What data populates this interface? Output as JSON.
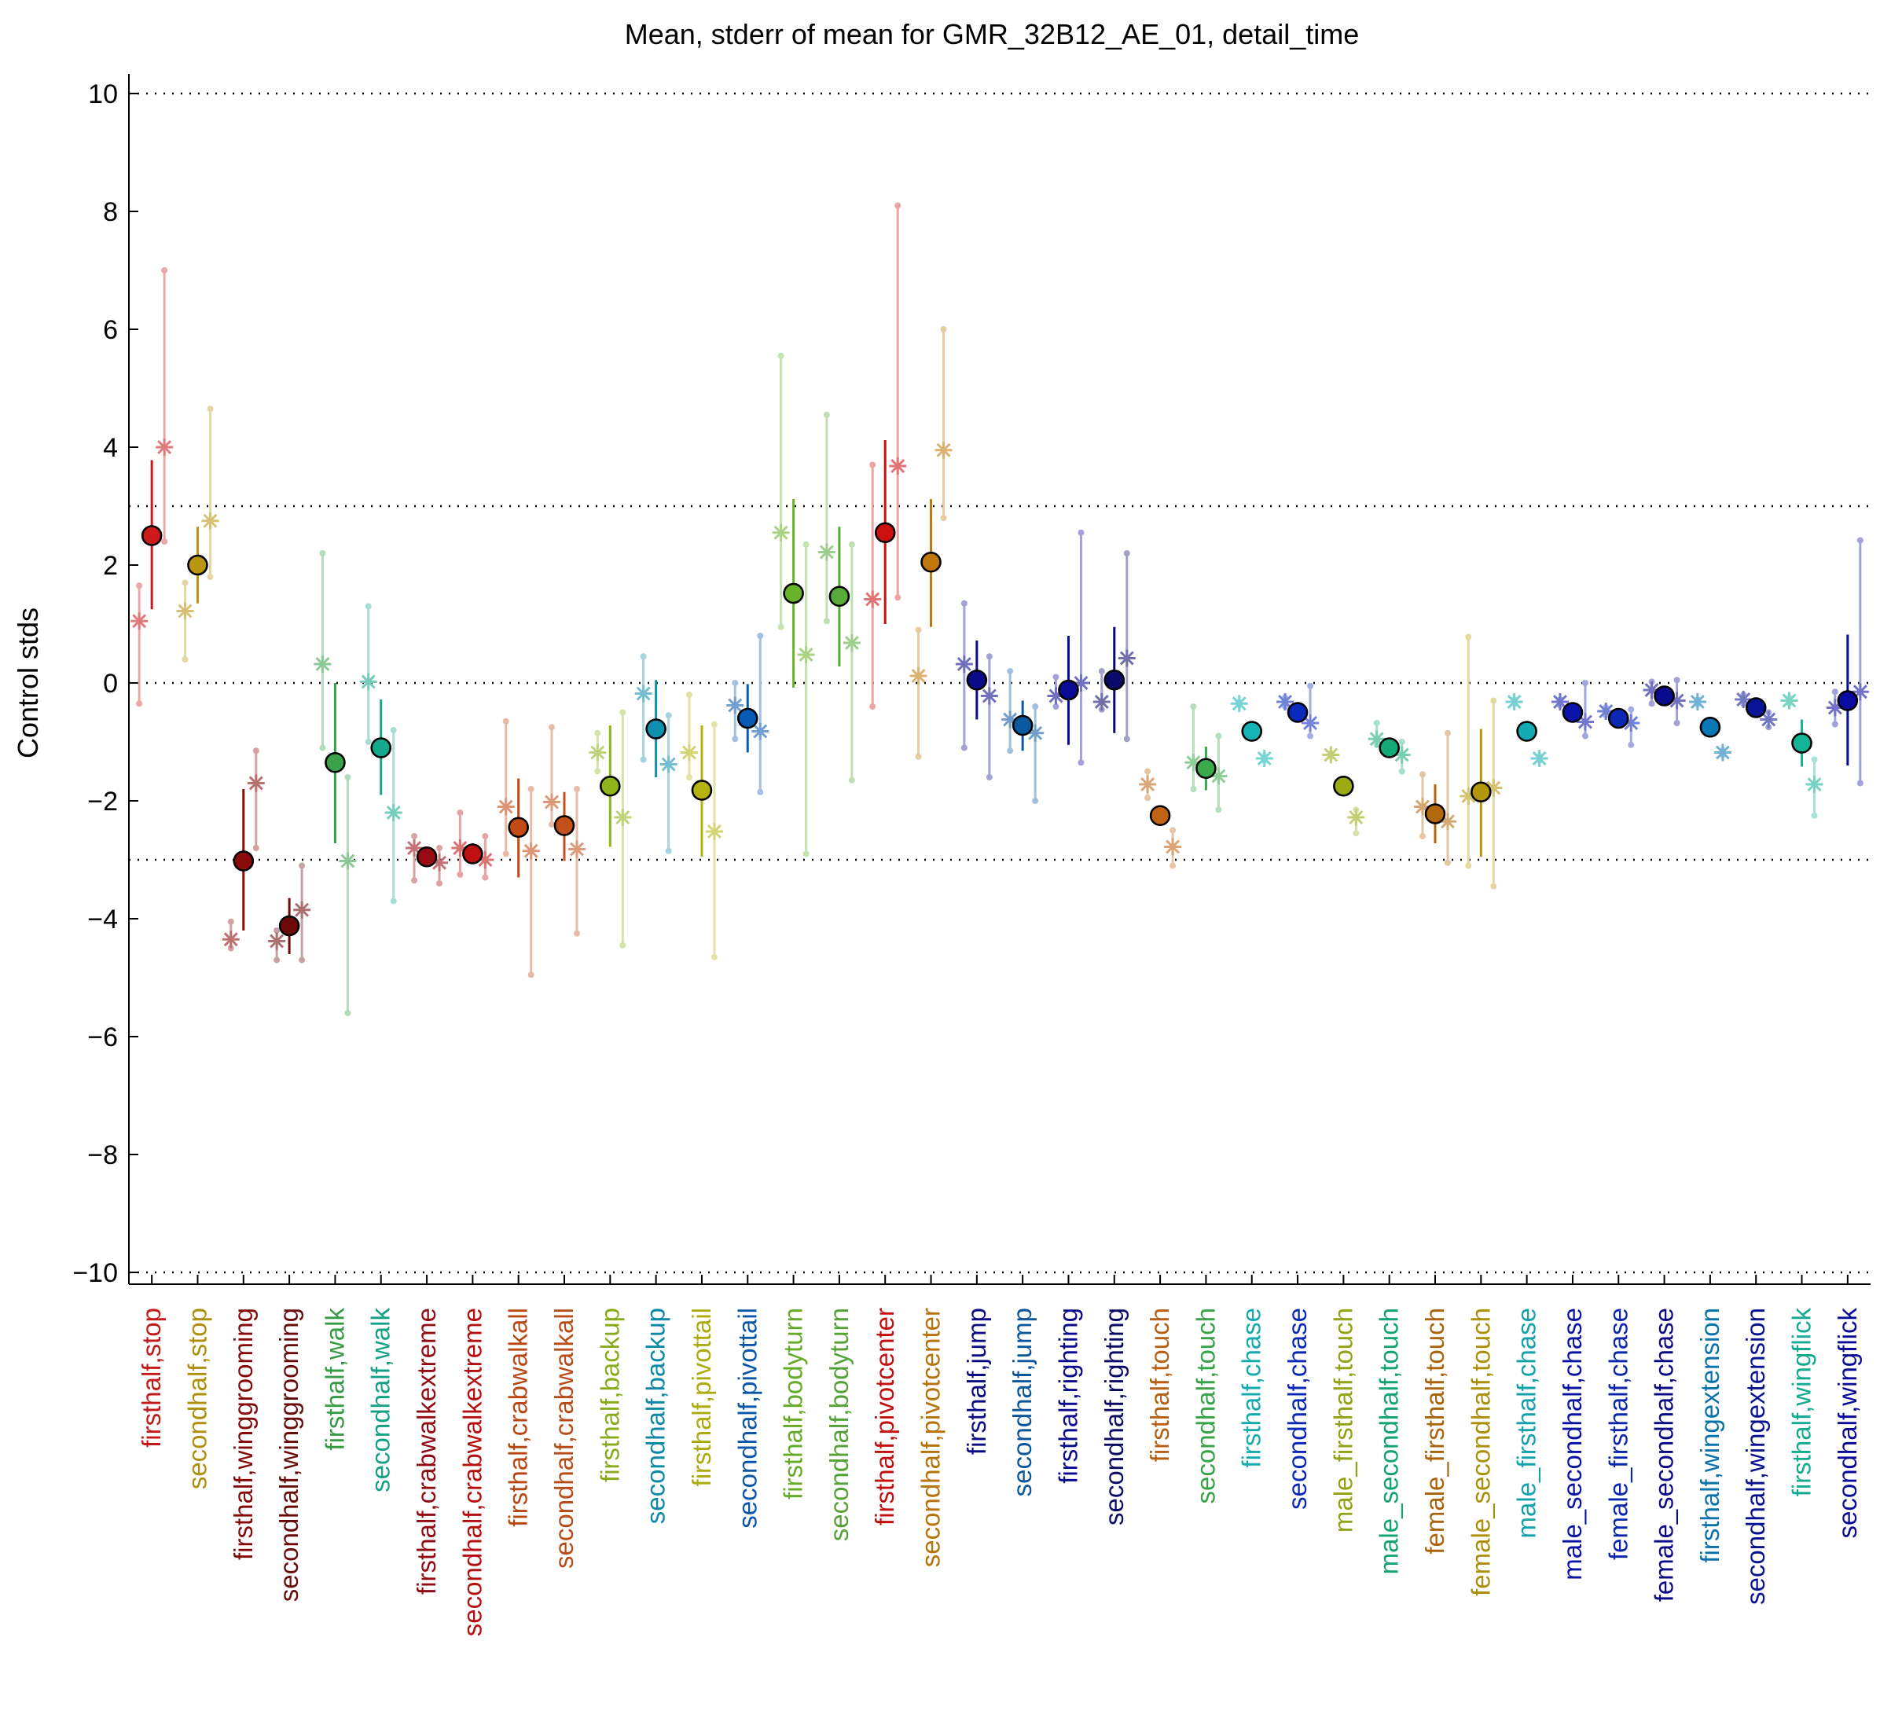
{
  "chart_data": {
    "type": "scatter",
    "title": "Mean, stderr of mean for GMR_32B12_AE_01, detail_time",
    "ylabel": "Control stds",
    "xlabel": "",
    "ylim": [
      -10.2,
      10.2
    ],
    "yticks": [
      -10,
      -8,
      -6,
      -4,
      -2,
      0,
      2,
      4,
      6,
      8,
      10
    ],
    "ytick_labels": [
      "−10",
      "−8",
      "−6",
      "−4",
      "−2",
      "0",
      "2",
      "4",
      "6",
      "8",
      "10"
    ],
    "reference_lines": [
      -10,
      -3,
      0,
      3,
      10
    ],
    "grid": false,
    "legend": "none",
    "categories": [
      {
        "label": "firsthalf,stop",
        "color": "#cc1a1a",
        "mean": 2.5,
        "sem_lo": 1.25,
        "sem_hi": 3.78,
        "starA": 1.05,
        "starB": 4.0,
        "rangeA": [
          -0.35,
          1.65
        ],
        "rangeB": [
          2.4,
          7.0
        ]
      },
      {
        "label": "secondhalf,stop",
        "color": "#b8960f",
        "mean": 2.0,
        "sem_lo": 1.35,
        "sem_hi": 2.65,
        "starA": 1.22,
        "starB": 2.75,
        "rangeA": [
          0.4,
          1.7
        ],
        "rangeB": [
          1.8,
          4.65
        ]
      },
      {
        "label": "firsthalf,winggrooming",
        "color": "#8b0a0a",
        "mean": -3.02,
        "sem_lo": -4.2,
        "sem_hi": -1.8,
        "starA": -4.35,
        "starB": -1.7,
        "rangeA": [
          -4.5,
          -4.05
        ],
        "rangeB": [
          -2.8,
          -1.15
        ]
      },
      {
        "label": "secondhalf,winggrooming",
        "color": "#6e0a0a",
        "mean": -4.12,
        "sem_lo": -4.6,
        "sem_hi": -3.65,
        "starA": -4.38,
        "starB": -3.85,
        "rangeA": [
          -4.7,
          -4.2
        ],
        "rangeB": [
          -4.7,
          -3.1
        ]
      },
      {
        "label": "firsthalf,walk",
        "color": "#3aa24a",
        "mean": -1.35,
        "sem_lo": -2.72,
        "sem_hi": 0.0,
        "starA": 0.32,
        "starB": -3.02,
        "rangeA": [
          -1.1,
          2.2
        ],
        "rangeB": [
          -5.6,
          -1.6
        ]
      },
      {
        "label": "secondhalf,walk",
        "color": "#14a88c",
        "mean": -1.1,
        "sem_lo": -1.9,
        "sem_hi": -0.28,
        "starA": 0.02,
        "starB": -2.2,
        "rangeA": [
          -1.0,
          1.3
        ],
        "rangeB": [
          -3.7,
          -0.8
        ]
      },
      {
        "label": "firsthalf,crabwalkextreme",
        "color": "#9a0c14",
        "mean": -2.95,
        "sem_lo": -3.1,
        "sem_hi": -2.8,
        "starA": -2.8,
        "starB": -3.05,
        "rangeA": [
          -3.35,
          -2.6
        ],
        "rangeB": [
          -3.4,
          -2.8
        ]
      },
      {
        "label": "secondhalf,crabwalkextreme",
        "color": "#c01010",
        "mean": -2.9,
        "sem_lo": -3.05,
        "sem_hi": -2.72,
        "starA": -2.8,
        "starB": -3.0,
        "rangeA": [
          -3.25,
          -2.2
        ],
        "rangeB": [
          -3.3,
          -2.6
        ]
      },
      {
        "label": "firsthalf,crabwalkall",
        "color": "#c24a14",
        "mean": -2.45,
        "sem_lo": -3.3,
        "sem_hi": -1.62,
        "starA": -2.1,
        "starB": -2.85,
        "rangeA": [
          -2.9,
          -0.65
        ],
        "rangeB": [
          -4.95,
          -1.8
        ]
      },
      {
        "label": "secondhalf,crabwalkall",
        "color": "#c2501a",
        "mean": -2.42,
        "sem_lo": -3.02,
        "sem_hi": -1.85,
        "starA": -2.02,
        "starB": -2.82,
        "rangeA": [
          -2.4,
          -0.75
        ],
        "rangeB": [
          -4.25,
          -1.8
        ]
      },
      {
        "label": "firsthalf,backup",
        "color": "#8fb41c",
        "mean": -1.75,
        "sem_lo": -2.78,
        "sem_hi": -0.72,
        "starA": -1.18,
        "starB": -2.28,
        "rangeA": [
          -1.5,
          -0.85
        ],
        "rangeB": [
          -4.45,
          -0.5
        ]
      },
      {
        "label": "secondhalf,backup",
        "color": "#0f8fb0",
        "mean": -0.78,
        "sem_lo": -1.6,
        "sem_hi": 0.05,
        "starA": -0.18,
        "starB": -1.38,
        "rangeA": [
          -1.3,
          0.45
        ],
        "rangeB": [
          -2.85,
          -0.55
        ]
      },
      {
        "label": "firsthalf,pivottail",
        "color": "#b4b40f",
        "mean": -1.82,
        "sem_lo": -2.95,
        "sem_hi": -0.72,
        "starA": -1.18,
        "starB": -2.52,
        "rangeA": [
          -1.6,
          -0.2
        ],
        "rangeB": [
          -4.65,
          -0.7
        ]
      },
      {
        "label": "secondhalf,pivottail",
        "color": "#0a5ab4",
        "mean": -0.6,
        "sem_lo": -1.18,
        "sem_hi": -0.02,
        "starA": -0.38,
        "starB": -0.82,
        "rangeA": [
          -0.95,
          0.0
        ],
        "rangeB": [
          -1.85,
          0.8
        ]
      },
      {
        "label": "firsthalf,bodyturn",
        "color": "#6ab42a",
        "mean": 1.52,
        "sem_lo": -0.08,
        "sem_hi": 3.12,
        "starA": 2.55,
        "starB": 0.48,
        "rangeA": [
          0.95,
          5.55
        ],
        "rangeB": [
          -2.9,
          2.35
        ]
      },
      {
        "label": "secondhalf,bodyturn",
        "color": "#58aa3a",
        "mean": 1.47,
        "sem_lo": 0.28,
        "sem_hi": 2.65,
        "starA": 2.22,
        "starB": 0.68,
        "rangeA": [
          1.05,
          4.55
        ],
        "rangeB": [
          -1.65,
          2.35
        ]
      },
      {
        "label": "firsthalf,pivotcenter",
        "color": "#cc1010",
        "mean": 2.55,
        "sem_lo": 1.0,
        "sem_hi": 4.12,
        "starA": 1.42,
        "starB": 3.68,
        "rangeA": [
          -0.4,
          3.7
        ],
        "rangeB": [
          1.45,
          8.1
        ]
      },
      {
        "label": "secondhalf,pivotcenter",
        "color": "#c0780c",
        "mean": 2.05,
        "sem_lo": 0.95,
        "sem_hi": 3.12,
        "starA": 0.12,
        "starB": 3.95,
        "rangeA": [
          -1.25,
          0.9
        ],
        "rangeB": [
          2.8,
          6.0
        ]
      },
      {
        "label": "firsthalf,jump",
        "color": "#0a0a8a",
        "mean": 0.05,
        "sem_lo": -0.62,
        "sem_hi": 0.72,
        "starA": 0.32,
        "starB": -0.22,
        "rangeA": [
          -1.1,
          1.35
        ],
        "rangeB": [
          -1.6,
          0.45
        ]
      },
      {
        "label": "secondhalf,jump",
        "color": "#0a5aa0",
        "mean": -0.72,
        "sem_lo": -1.15,
        "sem_hi": -0.3,
        "starA": -0.62,
        "starB": -0.85,
        "rangeA": [
          -1.15,
          0.2
        ],
        "rangeB": [
          -2.0,
          -0.4
        ]
      },
      {
        "label": "firsthalf,righting",
        "color": "#0a0a96",
        "mean": -0.12,
        "sem_lo": -1.05,
        "sem_hi": 0.8,
        "starA": -0.22,
        "starB": 0.0,
        "rangeA": [
          -0.4,
          0.1
        ],
        "rangeB": [
          -1.35,
          2.55
        ]
      },
      {
        "label": "secondhalf,righting",
        "color": "#0a0a6a",
        "mean": 0.05,
        "sem_lo": -0.85,
        "sem_hi": 0.95,
        "starA": -0.32,
        "starB": 0.42,
        "rangeA": [
          -0.45,
          0.2
        ],
        "rangeB": [
          -0.95,
          2.2
        ]
      },
      {
        "label": "firsthalf,touch",
        "color": "#c06414",
        "mean": -2.25,
        "sem_lo": -2.42,
        "sem_hi": -2.08,
        "starA": -1.72,
        "starB": -2.78,
        "rangeA": [
          -1.95,
          -1.5
        ],
        "rangeB": [
          -3.1,
          -2.5
        ]
      },
      {
        "label": "secondhalf,touch",
        "color": "#3aaa4a",
        "mean": -1.45,
        "sem_lo": -1.82,
        "sem_hi": -1.08,
        "starA": -1.35,
        "starB": -1.58,
        "rangeA": [
          -1.8,
          -0.4
        ],
        "rangeB": [
          -2.15,
          -0.9
        ]
      },
      {
        "label": "firsthalf,chase",
        "color": "#14b4b4",
        "mean": -0.82,
        "sem_lo": -0.85,
        "sem_hi": -0.79,
        "starA": -0.35,
        "starB": -1.28,
        "rangeA": [
          -0.38,
          -0.32
        ],
        "rangeB": [
          -1.32,
          -1.24
        ]
      },
      {
        "label": "secondhalf,chase",
        "color": "#0a2abe",
        "mean": -0.5,
        "sem_lo": -0.55,
        "sem_hi": -0.45,
        "starA": -0.32,
        "starB": -0.68,
        "rangeA": [
          -0.4,
          -0.25
        ],
        "rangeB": [
          -0.9,
          -0.05
        ]
      },
      {
        "label": "male_firsthalf,touch",
        "color": "#9aaa14",
        "mean": -1.75,
        "sem_lo": -1.78,
        "sem_hi": -1.72,
        "starA": -1.22,
        "starB": -2.28,
        "rangeA": [
          -1.25,
          -1.19
        ],
        "rangeB": [
          -2.55,
          -2.15
        ]
      },
      {
        "label": "male_secondhalf,touch",
        "color": "#14aa78",
        "mean": -1.1,
        "sem_lo": -1.15,
        "sem_hi": -1.05,
        "starA": -0.95,
        "starB": -1.22,
        "rangeA": [
          -1.05,
          -0.68
        ],
        "rangeB": [
          -1.5,
          -1.0
        ]
      },
      {
        "label": "female_firsthalf,touch",
        "color": "#b4680c",
        "mean": -2.22,
        "sem_lo": -2.72,
        "sem_hi": -1.72,
        "starA": -2.1,
        "starB": -2.35,
        "rangeA": [
          -2.6,
          -1.55
        ],
        "rangeB": [
          -3.05,
          -0.85
        ]
      },
      {
        "label": "female_secondhalf,touch",
        "color": "#b4960a",
        "mean": -1.85,
        "sem_lo": -2.95,
        "sem_hi": -0.78,
        "starA": -1.92,
        "starB": -1.78,
        "rangeA": [
          -3.1,
          0.78
        ],
        "rangeB": [
          -3.45,
          -0.3
        ]
      },
      {
        "label": "male_firsthalf,chase",
        "color": "#14aab4",
        "mean": -0.82,
        "sem_lo": -0.86,
        "sem_hi": -0.78,
        "starA": -0.32,
        "starB": -1.28,
        "rangeA": [
          -0.36,
          -0.28
        ],
        "rangeB": [
          -1.32,
          -1.24
        ]
      },
      {
        "label": "male_secondhalf,chase",
        "color": "#0a14aa",
        "mean": -0.5,
        "sem_lo": -0.54,
        "sem_hi": -0.46,
        "starA": -0.32,
        "starB": -0.66,
        "rangeA": [
          -0.38,
          -0.28
        ],
        "rangeB": [
          -0.9,
          0.0
        ]
      },
      {
        "label": "female_firsthalf,chase",
        "color": "#0a28b4",
        "mean": -0.6,
        "sem_lo": -0.64,
        "sem_hi": -0.56,
        "starA": -0.48,
        "starB": -0.68,
        "rangeA": [
          -0.55,
          -0.42
        ],
        "rangeB": [
          -1.05,
          -0.45
        ]
      },
      {
        "label": "female_secondhalf,chase",
        "color": "#0a0a8c",
        "mean": -0.22,
        "sem_lo": -0.3,
        "sem_hi": -0.14,
        "starA": -0.12,
        "starB": -0.3,
        "rangeA": [
          -0.35,
          0.02
        ],
        "rangeB": [
          -0.68,
          0.05
        ]
      },
      {
        "label": "firsthalf,wingextension",
        "color": "#0a78b4",
        "mean": -0.75,
        "sem_lo": -0.79,
        "sem_hi": -0.71,
        "starA": -0.32,
        "starB": -1.18,
        "rangeA": [
          -0.36,
          -0.28
        ],
        "rangeB": [
          -1.22,
          -1.14
        ]
      },
      {
        "label": "secondhalf,wingextension",
        "color": "#0a1496",
        "mean": -0.42,
        "sem_lo": -0.47,
        "sem_hi": -0.37,
        "starA": -0.28,
        "starB": -0.62,
        "rangeA": [
          -0.35,
          -0.2
        ],
        "rangeB": [
          -0.75,
          -0.5
        ]
      },
      {
        "label": "firsthalf,wingflick",
        "color": "#14b496",
        "mean": -1.02,
        "sem_lo": -1.42,
        "sem_hi": -0.62,
        "starA": -0.3,
        "starB": -1.72,
        "rangeA": [
          -0.35,
          -0.25
        ],
        "rangeB": [
          -2.25,
          -1.3
        ]
      },
      {
        "label": "secondhalf,wingflick",
        "color": "#0a0aa0",
        "mean": -0.3,
        "sem_lo": -1.4,
        "sem_hi": 0.82,
        "starA": -0.42,
        "starB": -0.15,
        "rangeA": [
          -0.7,
          -0.15
        ],
        "rangeB": [
          -1.7,
          2.42
        ]
      }
    ]
  }
}
